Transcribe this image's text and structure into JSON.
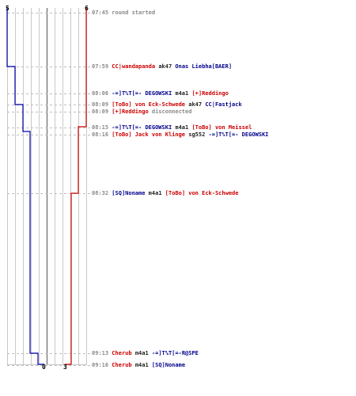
{
  "colors": {
    "team_blue": "#0000aa",
    "team_red": "#cc0000",
    "gridline": "#c8c8c8",
    "center_line": "#808080",
    "event_guide": "#bdbdbd",
    "text_gray": "#8a8a8a"
  },
  "scoreboard": {
    "blue_start": "5",
    "red_start": "6",
    "blue_end": "0",
    "red_end": "3"
  },
  "events": [
    {
      "time": "07:45",
      "parts": [
        {
          "text": "round started",
          "team": "sys"
        }
      ]
    },
    {
      "time": "07:59",
      "parts": [
        {
          "text": "CC|wandapanda",
          "team": "red"
        },
        {
          "text": "ak47",
          "team": "dark"
        },
        {
          "text": "Onas Liebha[BAER]",
          "team": "blue"
        }
      ]
    },
    {
      "time": "08:06",
      "parts": [
        {
          "text": "-=]T%T[=- DEGOWSKI",
          "team": "blue"
        },
        {
          "text": "m4a1",
          "team": "dark"
        },
        {
          "text": "[+]Reddingo",
          "team": "red"
        }
      ]
    },
    {
      "time": "08:09",
      "parts": [
        {
          "text": "[ToBo] von Eck-Schwede",
          "team": "red"
        },
        {
          "text": "ak47",
          "team": "dark"
        },
        {
          "text": "CC|Fastjack",
          "team": "blue"
        }
      ]
    },
    {
      "time": "08:09",
      "parts": [
        {
          "text": "[+]Reddingo",
          "team": "red"
        },
        {
          "text": "disconnected",
          "team": "sys"
        }
      ]
    },
    {
      "time": "08:15",
      "parts": [
        {
          "text": "-=]T%T[=- DEGOWSKI",
          "team": "blue"
        },
        {
          "text": "m4a1",
          "team": "dark"
        },
        {
          "text": "[ToBo] von Meissel",
          "team": "red"
        }
      ]
    },
    {
      "time": "08:16",
      "parts": [
        {
          "text": "[ToBo] Jack von Klinge",
          "team": "red"
        },
        {
          "text": "sg552",
          "team": "dark"
        },
        {
          "text": "-=]T%T[=- DEGOWSKI",
          "team": "blue"
        }
      ]
    },
    {
      "time": "08:32",
      "parts": [
        {
          "text": "[SQ]Noname",
          "team": "blue"
        },
        {
          "text": "m4a1",
          "team": "dark"
        },
        {
          "text": "[ToBo] von Eck-Schwede",
          "team": "red"
        }
      ]
    },
    {
      "time": "09:13",
      "parts": [
        {
          "text": "Cherub",
          "team": "red"
        },
        {
          "text": "m4a1",
          "team": "dark"
        },
        {
          "text": "-=]T%T[=-R@SPE",
          "team": "blue"
        }
      ]
    },
    {
      "time": "09:16",
      "parts": [
        {
          "text": "Cherub",
          "team": "red"
        },
        {
          "text": "m4a1",
          "team": "dark"
        },
        {
          "text": "[SQ]Noname",
          "team": "blue"
        }
      ]
    }
  ]
}
